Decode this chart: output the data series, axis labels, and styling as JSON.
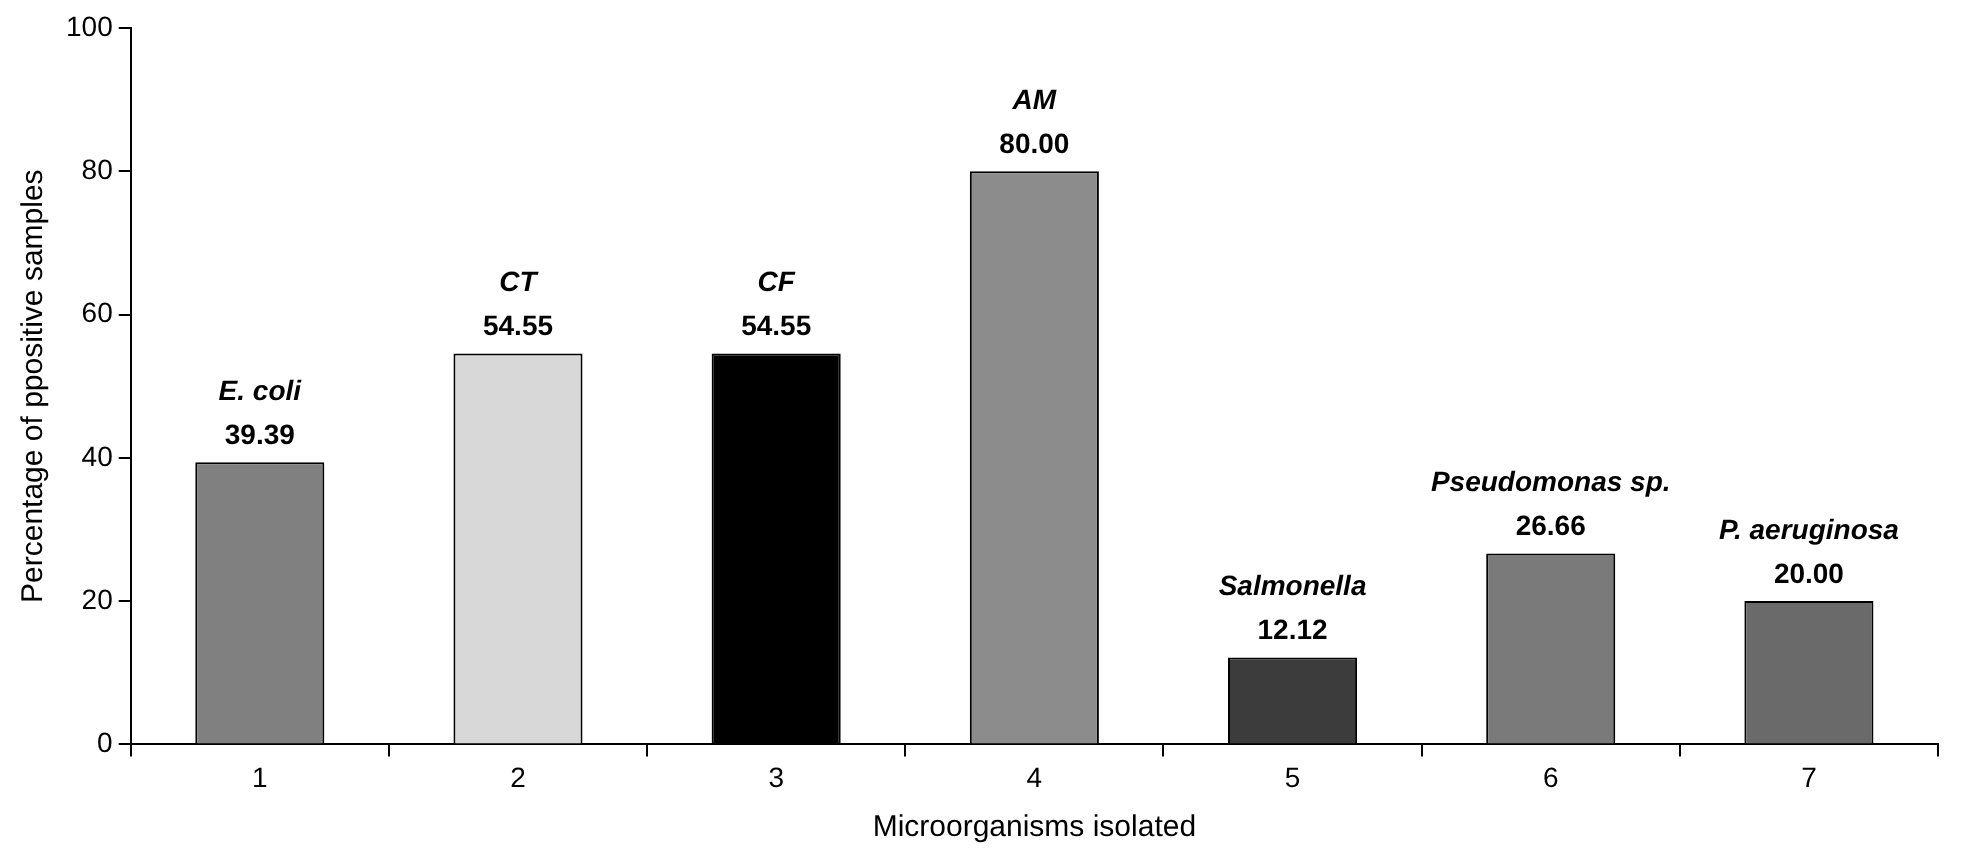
{
  "chart_data": {
    "type": "bar",
    "xlabel": "Microorganisms isolated",
    "ylabel": "Percentage of ppositive samples",
    "categories": [
      "1",
      "2",
      "3",
      "4",
      "5",
      "6",
      "7"
    ],
    "values": [
      39.39,
      54.55,
      54.55,
      80,
      12.12,
      26.66,
      20
    ],
    "colors": [
      "#808080",
      "#d8d8d8",
      "#000000",
      "#8c8c8c",
      "#3c3c3c",
      "#7a7a7a",
      "#6a6a6a"
    ],
    "value_labels": [
      "39.39",
      "54.55",
      "54.55",
      "80.00",
      "12.12",
      "26.66",
      "20.00"
    ],
    "annotations": [
      {
        "text": "E. coli",
        "x": "1",
        "y": 39.39
      },
      {
        "text": "CT",
        "x": "2",
        "y": 54.55
      },
      {
        "text": "CF",
        "x": "3",
        "y": 54.55
      },
      {
        "text": "AM",
        "x": "4",
        "y": 80
      },
      {
        "text": "Salmonella",
        "x": "5",
        "y": 12.12
      },
      {
        "text": "Pseudomonas sp.",
        "x": "6",
        "y": 26.66
      },
      {
        "text": "P. aeruginosa",
        "x": "7",
        "y": 20
      }
    ],
    "ylim": [
      0,
      100
    ],
    "yticks": [
      0,
      20,
      40,
      60,
      80,
      100
    ],
    "grid": false,
    "legend": false
  }
}
